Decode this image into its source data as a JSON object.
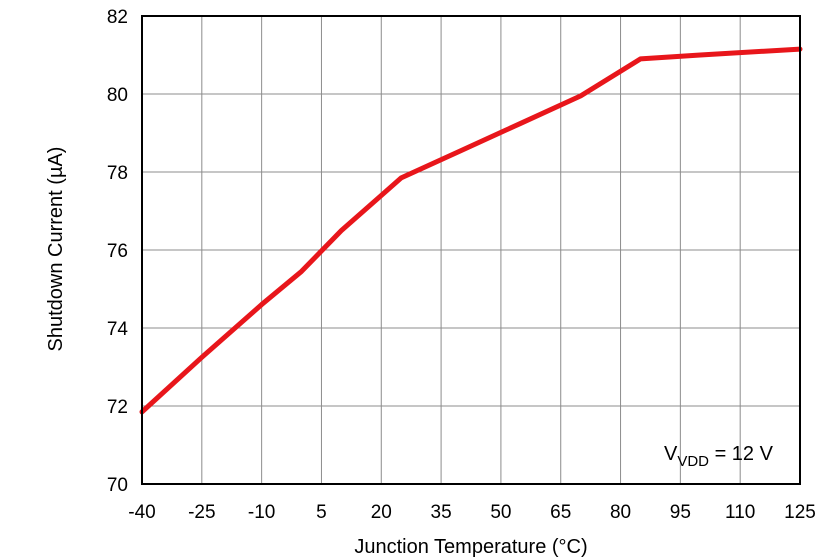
{
  "chart_data": {
    "type": "line",
    "xlabel": "Junction Temperature (°C)",
    "ylabel": "Shutdown Current (µA)",
    "xlim": [
      -40,
      125
    ],
    "ylim": [
      70,
      82
    ],
    "x_ticks": [
      -40,
      -25,
      -10,
      5,
      20,
      35,
      50,
      65,
      80,
      95,
      110,
      125
    ],
    "y_ticks": [
      70,
      72,
      74,
      76,
      78,
      80,
      82
    ],
    "grid": true,
    "annotation": {
      "main": "V",
      "sub": "VDD",
      "tail": " = 12 V"
    },
    "series": [
      {
        "color": "#e8161b",
        "x": [
          -40,
          -25,
          -10,
          0,
          10,
          25,
          40,
          55,
          70,
          85,
          100,
          125
        ],
        "y": [
          71.85,
          73.25,
          74.6,
          75.45,
          76.5,
          77.85,
          78.55,
          79.25,
          79.95,
          80.9,
          81.0,
          81.15
        ]
      }
    ]
  }
}
